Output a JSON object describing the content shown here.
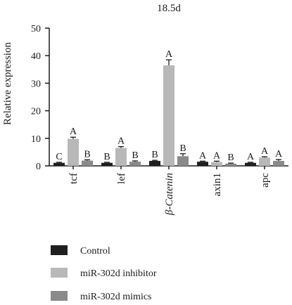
{
  "chart_data": {
    "type": "bar",
    "title": "18.5d",
    "ylabel": "Relative expression",
    "xlabel": "",
    "ylim": [
      0,
      50
    ],
    "yticks": [
      0,
      10,
      20,
      30,
      40,
      50
    ],
    "grid": false,
    "legend": "bottom-left",
    "categories": [
      "tcf",
      "lef",
      "β-Catenin",
      "axin1",
      "apc"
    ],
    "series": [
      {
        "name": "Control",
        "color": "#1f1f1f",
        "values": [
          1.1,
          1.1,
          1.8,
          1.5,
          1.1
        ],
        "errors": [
          0.2,
          0.2,
          0.2,
          0.2,
          0.2
        ],
        "letters": [
          "C",
          "B",
          "B",
          "A",
          "A"
        ]
      },
      {
        "name": "miR-302d inhibitor",
        "color": "#b8b8b8",
        "values": [
          9.8,
          6.5,
          36.5,
          1.4,
          3.0
        ],
        "errors": [
          0.6,
          0.5,
          2.0,
          0.3,
          0.3
        ],
        "letters": [
          "A",
          "A",
          "A",
          "A",
          "A"
        ]
      },
      {
        "name": "miR-302d mimics",
        "color": "#8a8a8a",
        "values": [
          1.9,
          1.5,
          3.5,
          0.8,
          1.8
        ],
        "errors": [
          0.3,
          0.3,
          0.9,
          0.2,
          0.5
        ],
        "letters": [
          "B",
          "B",
          "B",
          "B",
          "A"
        ]
      }
    ]
  }
}
